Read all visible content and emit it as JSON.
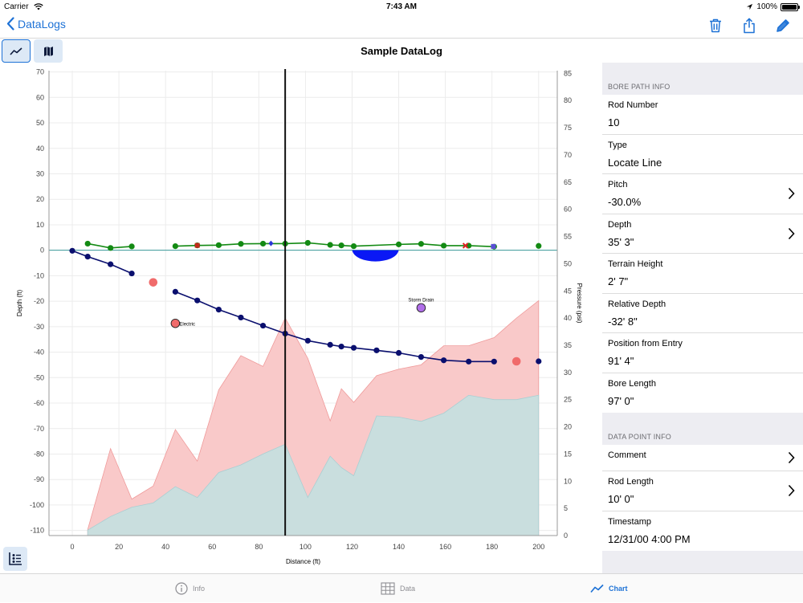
{
  "status": {
    "carrier": "Carrier",
    "time": "7:43 AM",
    "battery": "100%"
  },
  "nav": {
    "back_label": "DataLogs"
  },
  "chart_title": "Sample DataLog",
  "panel": {
    "bore_header": "BORE PATH INFO",
    "bore_rows": [
      {
        "label": "Rod Number",
        "value": "10",
        "chevron": false
      },
      {
        "label": "Type",
        "value": "Locate Line",
        "chevron": false
      },
      {
        "label": "Pitch",
        "value": "-30.0%",
        "chevron": true
      },
      {
        "label": "Depth",
        "value": "35' 3\"",
        "chevron": true
      },
      {
        "label": "Terrain Height",
        "value": "2' 7\"",
        "chevron": false
      },
      {
        "label": "Relative Depth",
        "value": "-32' 8\"",
        "chevron": false
      },
      {
        "label": "Position from Entry",
        "value": "91' 4\"",
        "chevron": false
      },
      {
        "label": "Bore Length",
        "value": "97' 0\"",
        "chevron": false
      }
    ],
    "point_header": "DATA POINT INFO",
    "point_rows": [
      {
        "label": "Comment",
        "value": "",
        "chevron": true
      },
      {
        "label": "Rod Length",
        "value": "10' 0\"",
        "chevron": true
      },
      {
        "label": "Timestamp",
        "value": "12/31/00 4:00 PM",
        "chevron": false
      }
    ]
  },
  "tabs": [
    {
      "label": "Info",
      "icon": "info-icon"
    },
    {
      "label": "Data",
      "icon": "grid-icon"
    },
    {
      "label": "Chart",
      "icon": "chart-line-icon"
    }
  ],
  "colors": {
    "accent": "#1e72d6",
    "bore": "#0a0f6e",
    "terrain": "#138a13",
    "pressure_max": "#f9c9c9",
    "pressure_min": "#c9dede",
    "obstacle": "#f06b6b"
  },
  "chart_data": {
    "type": "line",
    "xlabel": "Distance (ft)",
    "ylabel": "Depth (ft)",
    "y2label": "Pressure (psi)",
    "xlim": [
      -10,
      208
    ],
    "ylim": [
      -112,
      70.5
    ],
    "y2lim": [
      0,
      85.5
    ],
    "xticks": [
      0,
      20,
      40,
      60,
      80,
      100,
      120,
      140,
      160,
      180,
      200
    ],
    "yticks": [
      70,
      60,
      50,
      40,
      30,
      20,
      10,
      0,
      -10,
      -20,
      -30,
      -40,
      -50,
      -60,
      -70,
      -80,
      -90,
      -100,
      -110
    ],
    "y2ticks": [
      0,
      5,
      10,
      15,
      20,
      25,
      30,
      35,
      40,
      45,
      50,
      55,
      60,
      65,
      70,
      75,
      80,
      85
    ],
    "cursor_x": 91.3,
    "bore_path": {
      "segments": [
        [
          [
            0,
            -0.2
          ],
          [
            6.6,
            -2.5
          ],
          [
            16.4,
            -5.5
          ],
          [
            25.5,
            -9.1
          ]
        ],
        [
          [
            44.2,
            -16.3
          ],
          [
            53.6,
            -19.7
          ],
          [
            62.8,
            -23.3
          ],
          [
            72.3,
            -26.4
          ],
          [
            81.8,
            -29.6
          ],
          [
            91.3,
            -32.7
          ],
          [
            101,
            -35.5
          ],
          [
            110.6,
            -37.1
          ],
          [
            115.4,
            -37.8
          ],
          [
            120.7,
            -38.3
          ],
          [
            130.5,
            -39.3
          ],
          [
            140,
            -40.3
          ],
          [
            149.6,
            -41.9
          ],
          [
            159.3,
            -43.2
          ],
          [
            170,
            -43.7
          ],
          [
            180.9,
            -43.7
          ]
        ]
      ],
      "extra": [
        [
          200,
          -43.6
        ]
      ]
    },
    "terrain": {
      "segments": [
        [
          [
            6.6,
            2.6
          ],
          [
            16.4,
            0.9
          ],
          [
            25.5,
            1.5
          ]
        ],
        [
          [
            44.2,
            1.6
          ],
          [
            53.6,
            1.9
          ],
          [
            62.8,
            2.0
          ],
          [
            72.3,
            2.5
          ],
          [
            81.8,
            2.6
          ],
          [
            91.3,
            2.6
          ],
          [
            101,
            2.9
          ],
          [
            110.6,
            2.1
          ],
          [
            115.4,
            1.9
          ],
          [
            120.7,
            1.6
          ],
          [
            140,
            2.3
          ],
          [
            149.6,
            2.5
          ],
          [
            159.3,
            1.8
          ],
          [
            170,
            1.8
          ],
          [
            180.9,
            1.4
          ]
        ]
      ],
      "extra": [
        [
          200,
          1.7
        ]
      ],
      "markers": [
        {
          "x": 53.6,
          "y": 1.9,
          "shape": "square",
          "color": "#c22a1a"
        },
        {
          "x": 85.2,
          "y": 2.7,
          "shape": "diamond",
          "color": "#2a36d6"
        },
        {
          "x": 168.6,
          "y": 1.8,
          "shape": "cross",
          "color": "#e02020"
        },
        {
          "x": 180.6,
          "y": 1.5,
          "shape": "square",
          "color": "#5a4fd6"
        }
      ]
    },
    "water": {
      "x_from": 120,
      "x_to": 140,
      "depth": -4.5
    },
    "obstacles": [
      {
        "x": 34.7,
        "y": -12.6,
        "label": "",
        "color": "#f06b6b"
      },
      {
        "x": 44.2,
        "y": -28.7,
        "label": "Electric",
        "color": "#f06b6b"
      },
      {
        "x": 149.6,
        "y": -22.6,
        "label": "Storm Drain",
        "color": "#b06ee8"
      },
      {
        "x": 190.5,
        "y": -43.6,
        "label": "",
        "color": "#f06b6b"
      }
    ],
    "pressure_max": {
      "x": [
        6.6,
        16.4,
        25.5,
        34.7,
        44.2,
        53.6,
        62.8,
        72.3,
        81.8,
        91.3,
        101,
        110.6,
        115.4,
        120.7,
        130.5,
        140,
        149.6,
        159.3,
        170,
        180.9,
        190.5,
        200
      ],
      "y": [
        1.1,
        16,
        6.7,
        9.1,
        19.5,
        13.7,
        26.8,
        33.1,
        31.1,
        40,
        32.6,
        21.1,
        27,
        24.5,
        29.4,
        30.6,
        31.4,
        34.9,
        34.9,
        36.4,
        40,
        43.2
      ]
    },
    "pressure_min": {
      "x": [
        6.6,
        16.4,
        25.5,
        34.7,
        44.2,
        53.6,
        62.8,
        72.3,
        81.8,
        91.3,
        101,
        110.6,
        115.4,
        120.7,
        130.5,
        140,
        149.6,
        159.3,
        170,
        180.9,
        190.5,
        200
      ],
      "y": [
        1,
        3.5,
        5.2,
        6,
        9,
        7,
        11.6,
        13,
        15,
        16.8,
        7,
        14.6,
        12.5,
        11,
        22,
        21.8,
        21,
        22.5,
        25.8,
        25,
        25,
        25.8
      ]
    }
  }
}
